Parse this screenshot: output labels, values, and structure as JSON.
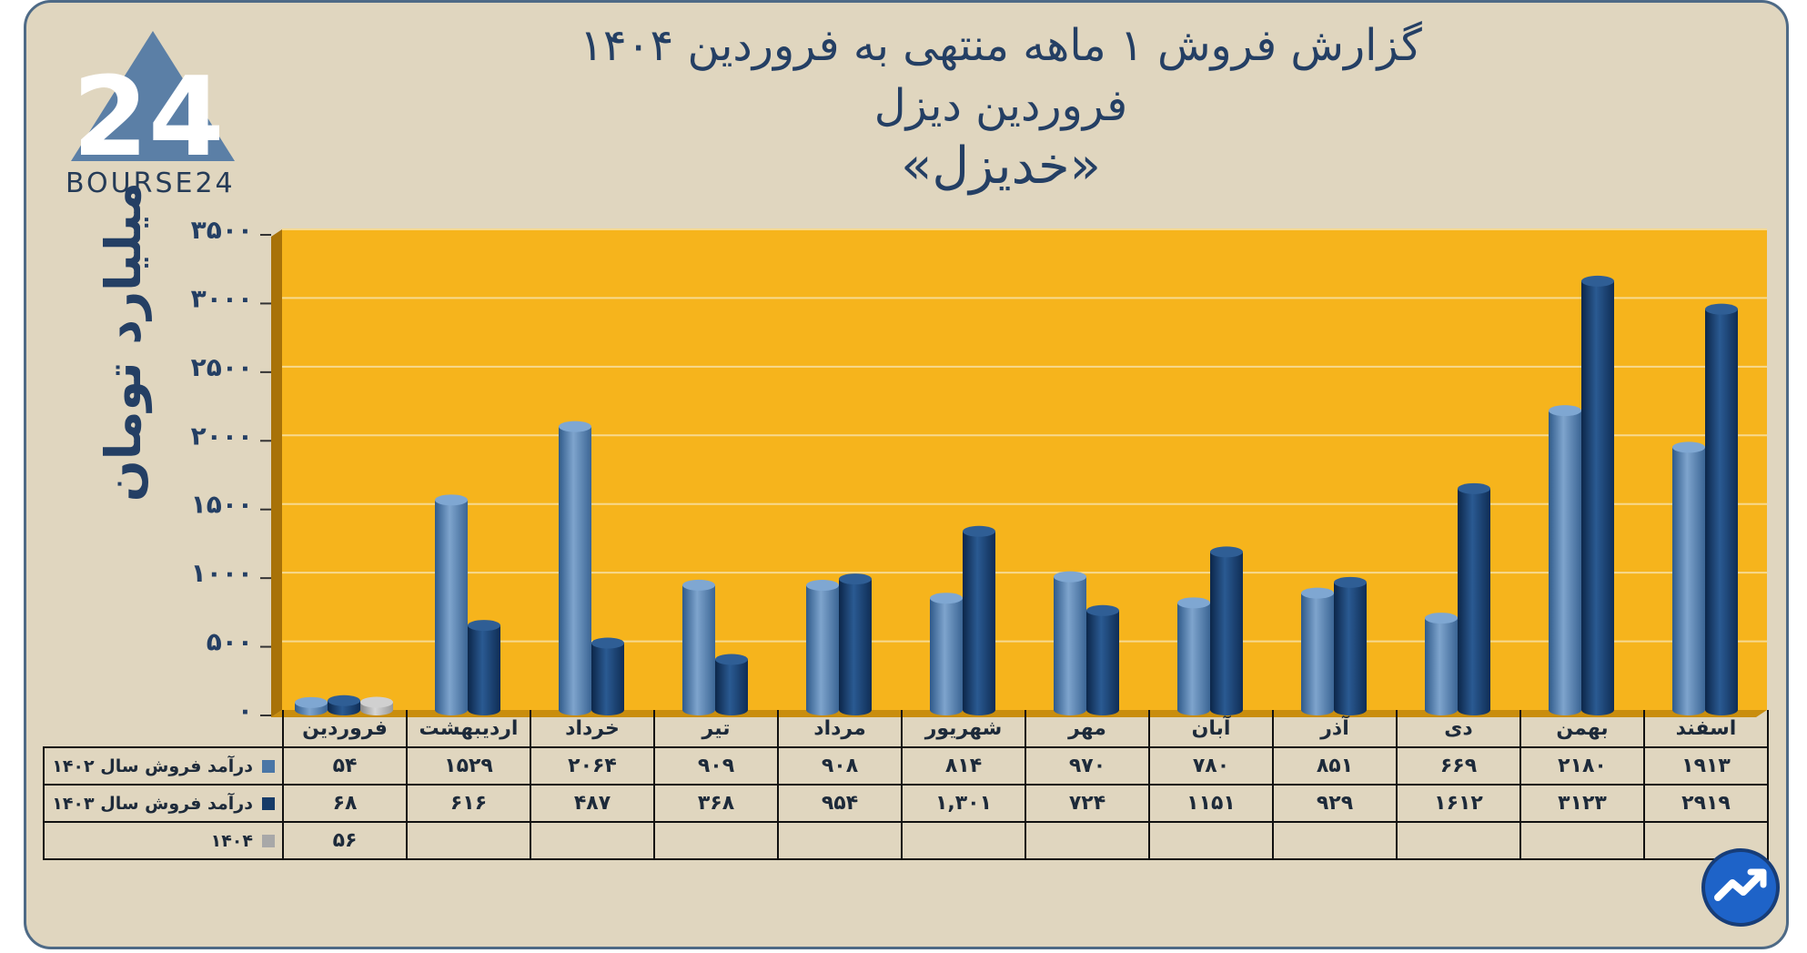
{
  "title": {
    "line1": "گزارش  فروش ۱ ماهه منتهی به فروردین ۱۴۰۴",
    "line2": "فروردین دیزل",
    "line3": "«خدیزل»"
  },
  "logo": {
    "text": "BOURSE24",
    "mark": "24"
  },
  "badge": {
    "icon": "chart-trend-icon"
  },
  "colors": {
    "plot_bg": "#f6b41c",
    "series_1402": "#4a76a6",
    "series_1403": "#163b68",
    "series_1404": "#a8a8a8",
    "text": "#243f64"
  },
  "chart_data": {
    "type": "bar",
    "ylabel": "میلیارد تومان",
    "ylim": [
      0,
      3500
    ],
    "yticks": [
      "۰",
      "۵۰۰",
      "۱۰۰۰",
      "۱۵۰۰",
      "۲۰۰۰",
      "۲۵۰۰",
      "۳۰۰۰",
      "۳۵۰۰"
    ],
    "ytick_values": [
      0,
      500,
      1000,
      1500,
      2000,
      2500,
      3000,
      3500
    ],
    "grid": true,
    "categories": [
      "فروردین",
      "اردیبهشت",
      "خرداد",
      "تیر",
      "مرداد",
      "شهریور",
      "مهر",
      "آبان",
      "آذر",
      "دی",
      "بهمن",
      "اسفند"
    ],
    "series": [
      {
        "name": "درآمد فروش سال ۱۴۰۲",
        "values": [
          54,
          1529,
          2064,
          909,
          908,
          814,
          970,
          780,
          851,
          669,
          2180,
          1913
        ],
        "labels": [
          "۵۴",
          "۱۵۲۹",
          "۲۰۶۴",
          "۹۰۹",
          "۹۰۸",
          "۸۱۴",
          "۹۷۰",
          "۷۸۰",
          "۸۵۱",
          "۶۶۹",
          "۲۱۸۰",
          "۱۹۱۳"
        ]
      },
      {
        "name": "درآمد فروش سال ۱۴۰۳",
        "values": [
          68,
          616,
          487,
          368,
          954,
          1301,
          724,
          1151,
          929,
          1612,
          3123,
          2919
        ],
        "labels": [
          "۶۸",
          "۶۱۶",
          "۴۸۷",
          "۳۶۸",
          "۹۵۴",
          "۱,۳۰۱",
          "۷۲۴",
          "۱۱۵۱",
          "۹۲۹",
          "۱۶۱۲",
          "۳۱۲۳",
          "۲۹۱۹"
        ]
      },
      {
        "name": "۱۴۰۴",
        "values": [
          56,
          null,
          null,
          null,
          null,
          null,
          null,
          null,
          null,
          null,
          null,
          null
        ],
        "labels": [
          "۵۶",
          "",
          "",
          "",
          "",
          "",
          "",
          "",
          "",
          "",
          "",
          ""
        ]
      }
    ]
  }
}
